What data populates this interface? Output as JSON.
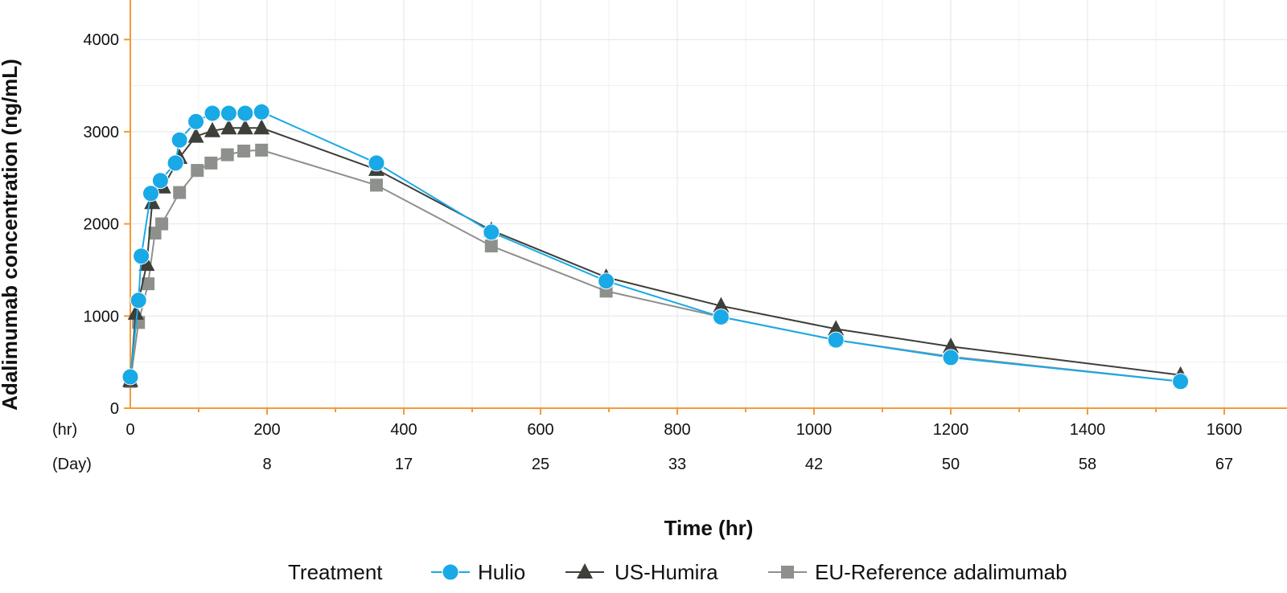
{
  "chart_data": {
    "type": "line",
    "xlabel": "Time (hr)",
    "ylabel": "Adalimumab concentration (ng/mL)",
    "xlim": [
      0,
      1650
    ],
    "ylim": [
      0,
      4400
    ],
    "x_row_labels": [
      "(hr)",
      "(Day)"
    ],
    "x_ticks": [
      0,
      200,
      400,
      600,
      800,
      1000,
      1200,
      1400,
      1600
    ],
    "x_tick_labels": [
      "0",
      "200",
      "400",
      "600",
      "800",
      "1000",
      "1200",
      "1400",
      "1600"
    ],
    "day_ticks": [
      {
        "x": 200,
        "label": "8"
      },
      {
        "x": 400,
        "label": "17"
      },
      {
        "x": 600,
        "label": "25"
      },
      {
        "x": 800,
        "label": "33"
      },
      {
        "x": 1000,
        "label": "42"
      },
      {
        "x": 1200,
        "label": "50"
      },
      {
        "x": 1400,
        "label": "58"
      },
      {
        "x": 1600,
        "label": "67"
      }
    ],
    "y_ticks": [
      0,
      1000,
      2000,
      3000,
      4000
    ],
    "y_tick_labels": [
      "0",
      "1000",
      "2000",
      "3000",
      "4000"
    ],
    "grid": true,
    "legend": {
      "position": "bottom",
      "title": "Treatment",
      "entries": [
        "Hulio",
        "US-Humira",
        "EU-Reference adalimumab"
      ]
    },
    "series": [
      {
        "name": "Hulio",
        "color": "#19a9e6",
        "marker": "circle",
        "x": [
          0,
          12,
          16,
          30,
          44,
          66,
          72,
          96,
          120,
          144,
          168,
          192,
          360,
          528,
          696,
          864,
          1032,
          1200,
          1536
        ],
        "y": [
          340,
          1170,
          1650,
          2330,
          2470,
          2660,
          2910,
          3110,
          3200,
          3200,
          3200,
          3215,
          2660,
          1910,
          1380,
          990,
          740,
          550,
          290
        ]
      },
      {
        "name": "US-Humira",
        "color": "#3d3f3a",
        "marker": "triangle",
        "x": [
          0,
          8,
          24,
          32,
          48,
          72,
          96,
          120,
          144,
          168,
          192,
          360,
          528,
          696,
          864,
          1032,
          1200,
          1536
        ],
        "y": [
          300,
          1030,
          1560,
          2230,
          2400,
          2720,
          2950,
          3010,
          3040,
          3040,
          3040,
          2590,
          1930,
          1420,
          1110,
          860,
          670,
          360
        ]
      },
      {
        "name": "EU-Reference adalimumab",
        "color": "#8e908c",
        "marker": "square",
        "x": [
          0,
          12,
          26,
          36,
          46,
          72,
          98,
          118,
          142,
          166,
          192,
          360,
          528,
          696,
          864,
          1032,
          1200,
          1536
        ],
        "y": [
          290,
          930,
          1350,
          1900,
          2000,
          2340,
          2580,
          2660,
          2750,
          2790,
          2800,
          2420,
          1760,
          1270,
          990,
          740,
          560,
          290
        ]
      }
    ]
  }
}
